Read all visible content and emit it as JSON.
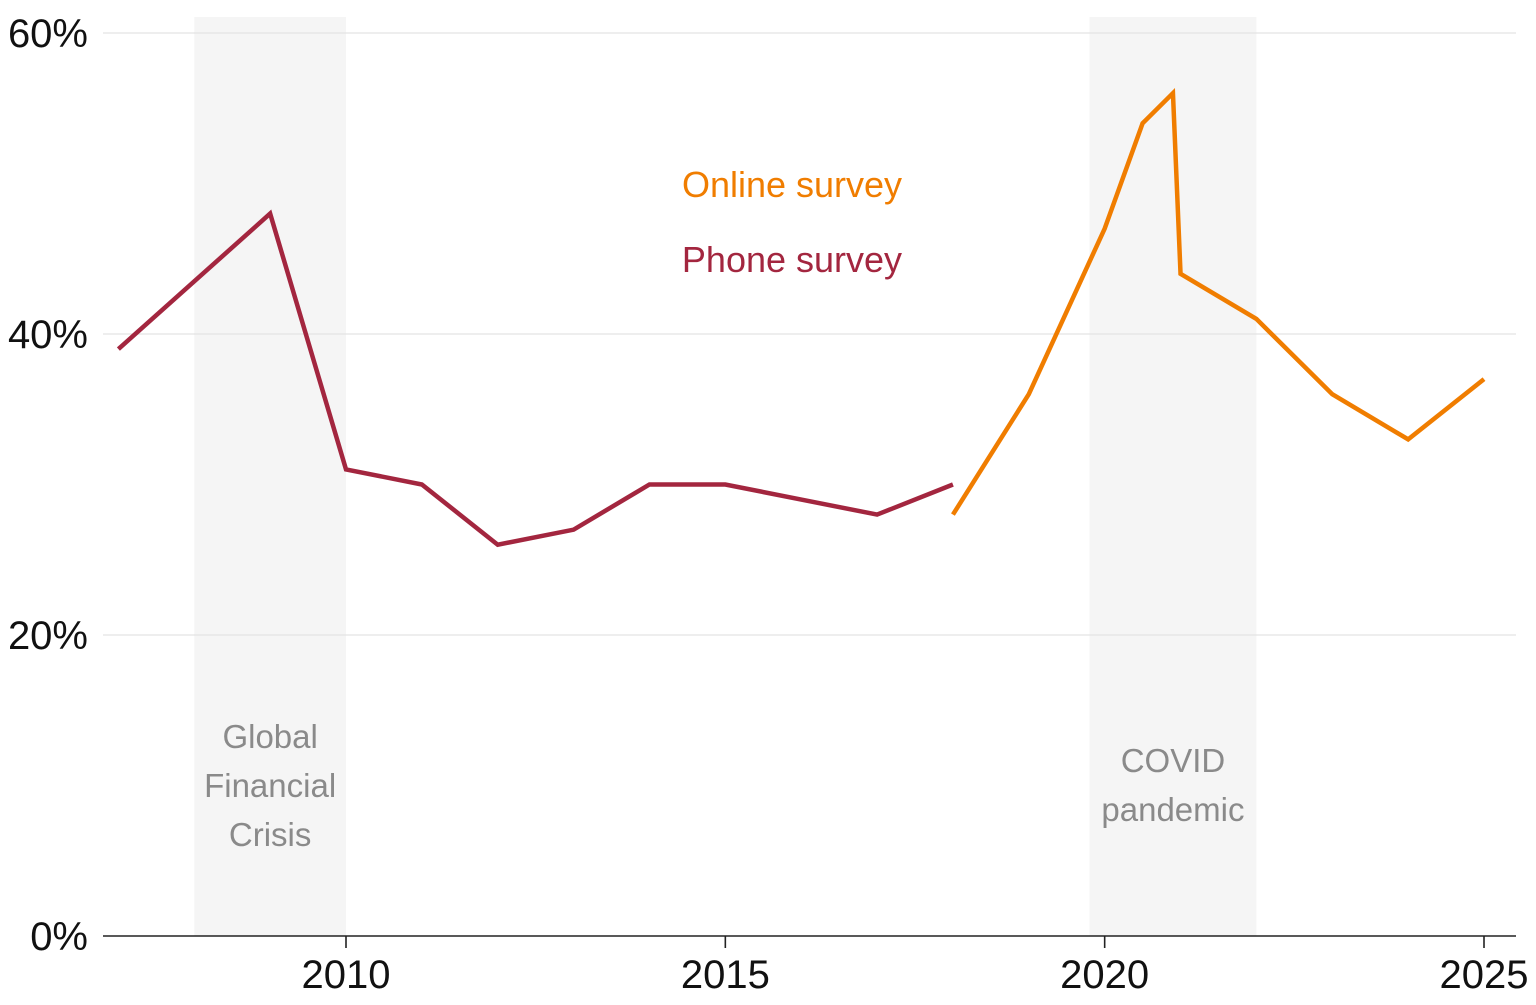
{
  "chart_data": {
    "type": "line",
    "title": "",
    "xlabel": "",
    "ylabel": "",
    "xlim": [
      2006.8,
      2025.4
    ],
    "ylim": [
      0,
      60
    ],
    "x_ticks": [
      2010,
      2015,
      2020,
      2025
    ],
    "x_tick_labels": [
      "2010",
      "2015",
      "2020",
      "2025"
    ],
    "y_ticks": [
      0,
      20,
      40,
      60
    ],
    "y_tick_labels": [
      "0%",
      "20%",
      "40%",
      "60%"
    ],
    "grid": "horizontal",
    "legend_placement": "top-center",
    "series": [
      {
        "name": "Phone survey",
        "color": "#a3263f",
        "x": [
          2007,
          2009,
          2010,
          2011,
          2012,
          2013,
          2014,
          2015,
          2016,
          2017,
          2018
        ],
        "values": [
          39,
          48,
          31,
          30,
          26,
          27,
          30,
          30,
          29,
          28,
          30
        ]
      },
      {
        "name": "Online survey",
        "color": "#f07d00",
        "x": [
          2018,
          2019,
          2020,
          2020.5,
          2020.9,
          2021,
          2022,
          2023,
          2024,
          2025
        ],
        "values": [
          28,
          36,
          47,
          54,
          56,
          44,
          41,
          36,
          33,
          37
        ]
      }
    ],
    "shaded_periods": [
      {
        "label": [
          "Global",
          "Financial",
          "Crisis"
        ],
        "x_start": 2008,
        "x_end": 2010,
        "color": "#f5f5f5"
      },
      {
        "label": [
          "COVID",
          "pandemic"
        ],
        "x_start": 2019.8,
        "x_end": 2022,
        "color": "#f5f5f5"
      }
    ]
  }
}
